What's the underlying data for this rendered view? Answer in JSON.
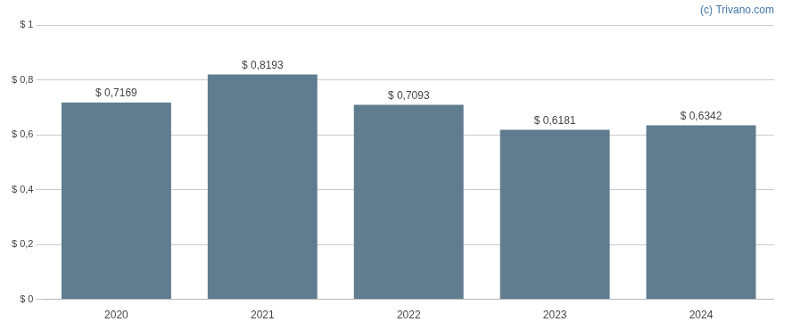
{
  "chart_data": {
    "type": "bar",
    "categories": [
      "2020",
      "2021",
      "2022",
      "2023",
      "2024"
    ],
    "values": [
      0.7169,
      0.8193,
      0.7093,
      0.6181,
      0.6342
    ],
    "value_labels": [
      "$ 0,7169",
      "$ 0,8193",
      "$ 0,7093",
      "$ 0,6181",
      "$ 0,6342"
    ],
    "data_labels": true,
    "color": "#607d8f",
    "ylim": [
      0,
      1.0
    ],
    "yticks": [
      {
        "value": 0,
        "label": "$ 0"
      },
      {
        "value": 0.2,
        "label": "$ 0,2"
      },
      {
        "value": 0.4,
        "label": "$ 0,4"
      },
      {
        "value": 0.6,
        "label": "$ 0,6"
      },
      {
        "value": 0.8,
        "label": "$ 0,8"
      },
      {
        "value": 1.0,
        "label": "$ 1"
      }
    ],
    "grid": true,
    "annotations": [
      "(c) Trivano.com"
    ]
  }
}
